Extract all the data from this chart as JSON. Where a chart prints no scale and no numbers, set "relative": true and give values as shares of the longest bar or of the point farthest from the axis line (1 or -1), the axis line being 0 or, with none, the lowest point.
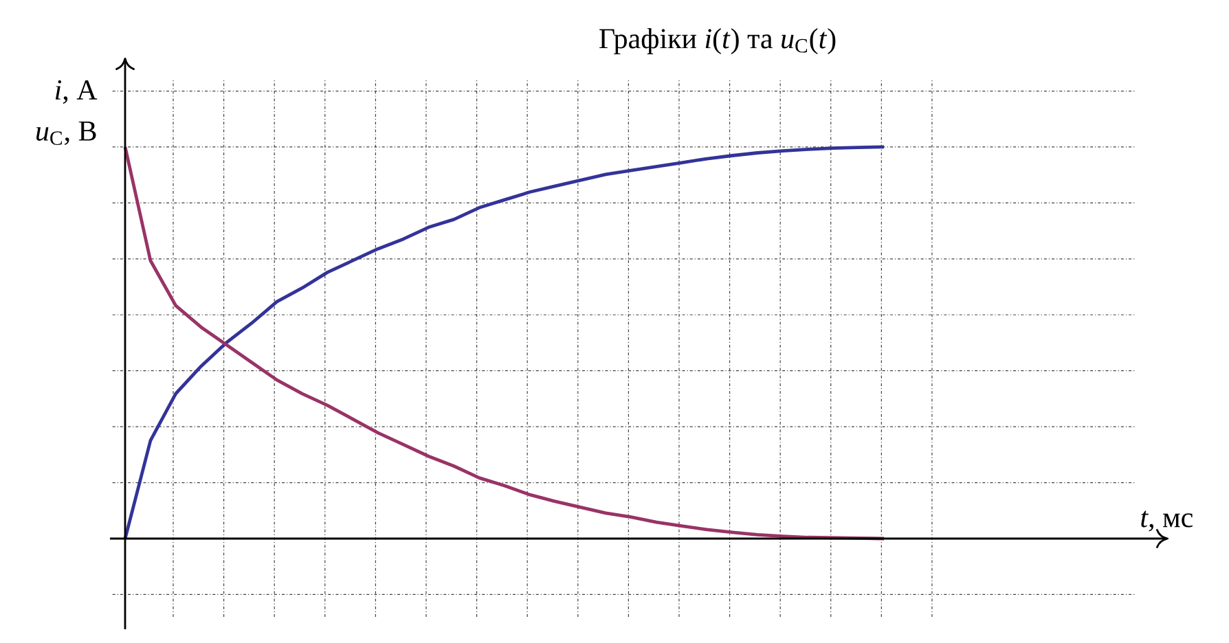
{
  "chart_data": {
    "type": "line",
    "title": "Графіки *i*(*t*) та *u*$_{C}$(*t*)",
    "ylabel": "*i*, А",
    "annotations": [
      "*u*$_{C}$, В",
      "*t*, мс"
    ],
    "relative": true,
    "grid": true,
    "categories": [
      null,
      null,
      null,
      null,
      null,
      null,
      null,
      null,
      null,
      null,
      null,
      null,
      null,
      null,
      null,
      null,
      null,
      null,
      null,
      null,
      null,
      null,
      null,
      null,
      null,
      null,
      null,
      null,
      null,
      null,
      null
    ],
    "series": [
      {
        "color": "#333399",
        "values": [
          0,
          0.25,
          0.37,
          0.44,
          0.5,
          0.55,
          0.605,
          0.64,
          0.68,
          0.71,
          0.74,
          0.765,
          0.795,
          0.815,
          0.845,
          0.865,
          0.885,
          0.9,
          0.915,
          0.93,
          0.94,
          0.95,
          0.96,
          0.97,
          0.978,
          0.985,
          0.99,
          0.994,
          0.997,
          0.999,
          1
        ]
      },
      {
        "color": "#993366",
        "values": [
          1,
          0.71,
          0.595,
          0.54,
          0.495,
          0.45,
          0.405,
          0.37,
          0.34,
          0.305,
          0.27,
          0.24,
          0.21,
          0.185,
          0.155,
          0.135,
          0.112,
          0.095,
          0.08,
          0.065,
          0.055,
          0.042,
          0.032,
          0.023,
          0.016,
          0.01,
          0.006,
          0.003,
          0.002,
          0.001,
          0
        ]
      }
    ]
  }
}
